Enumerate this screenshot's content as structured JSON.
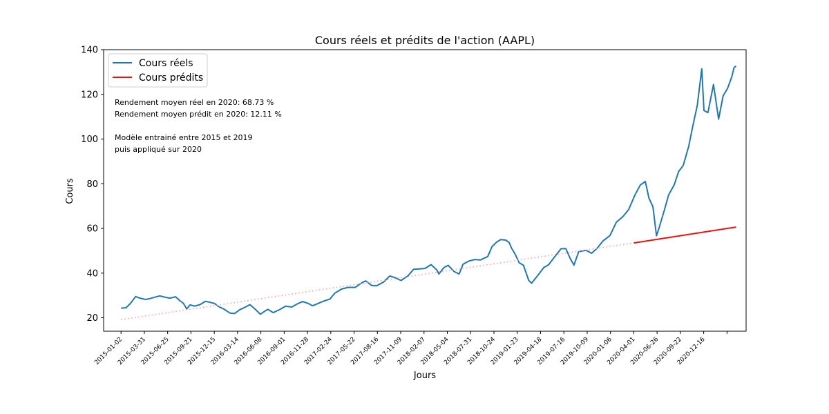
{
  "chart_data": {
    "type": "line",
    "title": "Cours réels et prédits de l'action (AAPL)",
    "xlabel": "Jours",
    "ylabel": "Cours",
    "ylim": [
      14,
      140
    ],
    "yticks": [
      20,
      40,
      60,
      80,
      100,
      120,
      140
    ],
    "xlim": [
      "2014-11-01",
      "2021-02-05"
    ],
    "xtick_labels": [
      "2015-01-02",
      "2015-03-31",
      "2015-06-25",
      "2015-09-21",
      "2015-12-15",
      "2016-03-14",
      "2016-06-08",
      "2016-09-01",
      "2016-11-28",
      "2017-02-24",
      "2017-05-22",
      "2017-08-16",
      "2017-11-09",
      "2018-02-07",
      "2018-05-04",
      "2018-07-31",
      "2018-10-24",
      "2019-01-23",
      "2019-04-18",
      "2019-07-16",
      "2019-10-09",
      "2020-01-06",
      "2020-04-01",
      "2020-06-26",
      "2020-09-22",
      "2020-12-16"
    ],
    "grid": false,
    "legend": {
      "placement": "top-left"
    },
    "series": [
      {
        "name": "Cours réels",
        "color": "#1f77b4",
        "style": "solid",
        "points": [
          [
            "2015-01-02",
            24.3
          ],
          [
            "2015-01-20",
            24.5
          ],
          [
            "2015-02-05",
            26.5
          ],
          [
            "2015-02-23",
            29.5
          ],
          [
            "2015-03-10",
            28.8
          ],
          [
            "2015-03-31",
            28.2
          ],
          [
            "2015-04-15",
            28.6
          ],
          [
            "2015-05-01",
            29.2
          ],
          [
            "2015-05-20",
            29.8
          ],
          [
            "2015-06-05",
            29.3
          ],
          [
            "2015-06-25",
            28.8
          ],
          [
            "2015-07-15",
            29.4
          ],
          [
            "2015-07-31",
            27.6
          ],
          [
            "2015-08-12",
            26.5
          ],
          [
            "2015-08-24",
            24.0
          ],
          [
            "2015-09-05",
            25.8
          ],
          [
            "2015-09-21",
            25.2
          ],
          [
            "2015-10-10",
            25.9
          ],
          [
            "2015-10-30",
            27.4
          ],
          [
            "2015-11-15",
            26.9
          ],
          [
            "2015-12-01",
            26.4
          ],
          [
            "2015-12-15",
            25.1
          ],
          [
            "2016-01-05",
            23.8
          ],
          [
            "2016-01-25",
            22.1
          ],
          [
            "2016-02-10",
            21.9
          ],
          [
            "2016-03-01",
            23.7
          ],
          [
            "2016-03-14",
            24.4
          ],
          [
            "2016-04-05",
            25.9
          ],
          [
            "2016-04-25",
            23.7
          ],
          [
            "2016-05-12",
            21.6
          ],
          [
            "2016-05-31",
            23.2
          ],
          [
            "2016-06-08",
            23.8
          ],
          [
            "2016-06-27",
            22.3
          ],
          [
            "2016-07-20",
            23.7
          ],
          [
            "2016-08-10",
            25.2
          ],
          [
            "2016-09-01",
            24.8
          ],
          [
            "2016-09-20",
            26.2
          ],
          [
            "2016-10-10",
            27.3
          ],
          [
            "2016-11-01",
            26.3
          ],
          [
            "2016-11-14",
            25.4
          ],
          [
            "2016-11-28",
            26.1
          ],
          [
            "2016-12-20",
            27.3
          ],
          [
            "2017-01-15",
            28.4
          ],
          [
            "2017-02-01",
            31.0
          ],
          [
            "2017-02-24",
            32.8
          ],
          [
            "2017-03-20",
            33.6
          ],
          [
            "2017-04-15",
            33.6
          ],
          [
            "2017-05-10",
            35.8
          ],
          [
            "2017-05-22",
            36.5
          ],
          [
            "2017-06-12",
            34.5
          ],
          [
            "2017-06-30",
            34.3
          ],
          [
            "2017-07-25",
            36.0
          ],
          [
            "2017-08-16",
            38.7
          ],
          [
            "2017-09-05",
            37.9
          ],
          [
            "2017-09-25",
            36.7
          ],
          [
            "2017-10-20",
            38.8
          ],
          [
            "2017-11-09",
            41.7
          ],
          [
            "2017-11-30",
            41.9
          ],
          [
            "2017-12-20",
            42.1
          ],
          [
            "2018-01-10",
            43.8
          ],
          [
            "2018-01-30",
            41.5
          ],
          [
            "2018-02-07",
            39.6
          ],
          [
            "2018-02-25",
            42.5
          ],
          [
            "2018-03-12",
            43.5
          ],
          [
            "2018-04-02",
            40.7
          ],
          [
            "2018-04-20",
            39.6
          ],
          [
            "2018-05-04",
            44.0
          ],
          [
            "2018-05-25",
            45.4
          ],
          [
            "2018-06-15",
            46.1
          ],
          [
            "2018-07-05",
            45.9
          ],
          [
            "2018-07-31",
            47.4
          ],
          [
            "2018-08-15",
            51.8
          ],
          [
            "2018-08-31",
            53.8
          ],
          [
            "2018-09-15",
            55.0
          ],
          [
            "2018-10-03",
            54.8
          ],
          [
            "2018-10-15",
            53.7
          ],
          [
            "2018-10-24",
            51.1
          ],
          [
            "2018-11-05",
            48.6
          ],
          [
            "2018-11-20",
            44.6
          ],
          [
            "2018-12-05",
            43.5
          ],
          [
            "2018-12-24",
            36.7
          ],
          [
            "2019-01-03",
            35.5
          ],
          [
            "2019-01-23",
            38.6
          ],
          [
            "2019-02-15",
            42.4
          ],
          [
            "2019-03-05",
            43.8
          ],
          [
            "2019-03-25",
            47.1
          ],
          [
            "2019-04-18",
            50.9
          ],
          [
            "2019-05-05",
            51.0
          ],
          [
            "2019-05-20",
            46.7
          ],
          [
            "2019-06-03",
            43.6
          ],
          [
            "2019-06-20",
            49.6
          ],
          [
            "2019-07-16",
            50.2
          ],
          [
            "2019-08-05",
            48.9
          ],
          [
            "2019-08-25",
            51.2
          ],
          [
            "2019-09-15",
            54.5
          ],
          [
            "2019-10-09",
            56.8
          ],
          [
            "2019-11-01",
            62.8
          ],
          [
            "2019-11-25",
            65.4
          ],
          [
            "2019-12-15",
            68.5
          ],
          [
            "2020-01-06",
            74.9
          ],
          [
            "2020-01-25",
            79.4
          ],
          [
            "2020-02-12",
            81.0
          ],
          [
            "2020-02-25",
            73.5
          ],
          [
            "2020-03-10",
            69.7
          ],
          [
            "2020-03-23",
            56.7
          ],
          [
            "2020-04-01",
            60.2
          ],
          [
            "2020-04-20",
            68.2
          ],
          [
            "2020-05-05",
            75.0
          ],
          [
            "2020-05-25",
            79.5
          ],
          [
            "2020-06-10",
            85.5
          ],
          [
            "2020-06-26",
            88.2
          ],
          [
            "2020-07-15",
            96.5
          ],
          [
            "2020-07-31",
            106.3
          ],
          [
            "2020-08-15",
            115.0
          ],
          [
            "2020-08-31",
            131.4
          ],
          [
            "2020-09-08",
            112.8
          ],
          [
            "2020-09-22",
            111.8
          ],
          [
            "2020-10-12",
            124.4
          ],
          [
            "2020-10-30",
            108.9
          ],
          [
            "2020-11-15",
            119.3
          ],
          [
            "2020-12-01",
            122.7
          ],
          [
            "2020-12-16",
            127.9
          ],
          [
            "2020-12-24",
            131.9
          ],
          [
            "2020-12-31",
            132.7
          ]
        ]
      },
      {
        "name": "Cours prédits",
        "color": "#ee1111",
        "style": "solid",
        "points": [
          [
            "2020-01-02",
            53.5
          ],
          [
            "2020-12-31",
            60.6
          ]
        ]
      },
      {
        "color": "#f4a0a0",
        "style": "dotted",
        "points": [
          [
            "2015-01-02",
            19.2
          ],
          [
            "2019-12-31",
            53.5
          ]
        ]
      }
    ],
    "annotations": [
      "Rendement moyen réel en 2020: 68.73 %",
      "Rendement moyen prédit en 2020: 12.11 %",
      "",
      "Modèle entrainé entre 2015 et 2019",
      "puis appliqué sur 2020"
    ]
  }
}
